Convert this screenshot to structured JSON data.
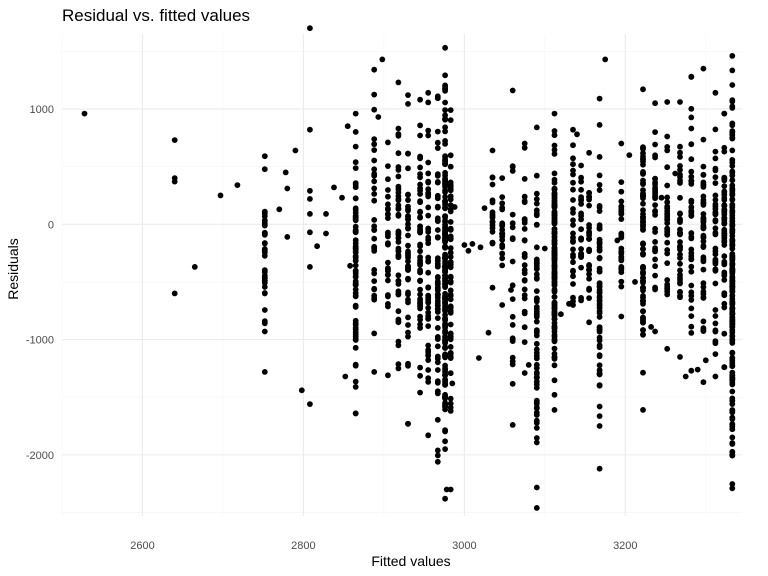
{
  "chart_data": {
    "type": "scatter",
    "title": "Residual vs. fitted values",
    "xlabel": "Fitted values",
    "ylabel": "Residuals",
    "xlim": [
      2500,
      3345
    ],
    "ylim": [
      -2530,
      1650
    ],
    "x_ticks": [
      2600,
      2800,
      3000,
      3200
    ],
    "x_tick_labels": [
      "2600",
      "2800",
      "3000",
      "3200"
    ],
    "y_ticks": [
      1000,
      0,
      -1000,
      -2000
    ],
    "y_tick_labels": [
      "1000",
      "0",
      "-1000",
      "-2000"
    ],
    "grid": true,
    "background": "#ffffff",
    "grid_major_color": "#ebebeb",
    "grid_minor_color": "#f5f5f5",
    "point_color": "#000000",
    "columns": [
      {
        "x": 2752,
        "min": -1280,
        "max": 590,
        "n": 34
      },
      {
        "x": 2865,
        "min": -1640,
        "max": 960,
        "n": 70
      },
      {
        "x": 2888,
        "min": -1280,
        "max": 1340,
        "n": 32
      },
      {
        "x": 2905,
        "min": -1310,
        "max": 710,
        "n": 28
      },
      {
        "x": 2918,
        "min": -1250,
        "max": 1230,
        "n": 46
      },
      {
        "x": 2930,
        "min": -1730,
        "max": 1120,
        "n": 44
      },
      {
        "x": 2945,
        "min": -1460,
        "max": 1080,
        "n": 54
      },
      {
        "x": 2955,
        "min": -1830,
        "max": 1140,
        "n": 46
      },
      {
        "x": 2967,
        "min": -2060,
        "max": 1110,
        "n": 60
      },
      {
        "x": 2976,
        "min": -2380,
        "max": 1530,
        "n": 190
      },
      {
        "x": 2983,
        "min": -2300,
        "max": 990,
        "n": 60
      },
      {
        "x": 3035,
        "min": -550,
        "max": 640,
        "n": 18
      },
      {
        "x": 3047,
        "min": -700,
        "max": 400,
        "n": 22
      },
      {
        "x": 3060,
        "min": -1740,
        "max": 1160,
        "n": 20
      },
      {
        "x": 3075,
        "min": -1290,
        "max": 700,
        "n": 28
      },
      {
        "x": 3090,
        "min": -2460,
        "max": 840,
        "n": 64
      },
      {
        "x": 3112,
        "min": -1610,
        "max": 960,
        "n": 140
      },
      {
        "x": 3135,
        "min": -700,
        "max": 820,
        "n": 26
      },
      {
        "x": 3145,
        "min": -660,
        "max": 510,
        "n": 22
      },
      {
        "x": 3155,
        "min": -850,
        "max": 620,
        "n": 28
      },
      {
        "x": 3168,
        "min": -2120,
        "max": 1090,
        "n": 64
      },
      {
        "x": 3195,
        "min": -800,
        "max": 700,
        "n": 26
      },
      {
        "x": 3222,
        "min": -1610,
        "max": 1170,
        "n": 80
      },
      {
        "x": 3237,
        "min": -930,
        "max": 1050,
        "n": 30
      },
      {
        "x": 3252,
        "min": -1080,
        "max": 1060,
        "n": 34
      },
      {
        "x": 3268,
        "min": -1150,
        "max": 1060,
        "n": 38
      },
      {
        "x": 3282,
        "min": -1270,
        "max": 1280,
        "n": 40
      },
      {
        "x": 3297,
        "min": -1370,
        "max": 1350,
        "n": 44
      },
      {
        "x": 3312,
        "min": -1320,
        "max": 1140,
        "n": 40
      },
      {
        "x": 3323,
        "min": -1240,
        "max": 960,
        "n": 54
      },
      {
        "x": 3333,
        "min": -2290,
        "max": 1460,
        "n": 190
      }
    ],
    "points": [
      {
        "x": 2528,
        "y": 960
      },
      {
        "x": 2640,
        "y": 730
      },
      {
        "x": 2640,
        "y": 400
      },
      {
        "x": 2640,
        "y": 370
      },
      {
        "x": 2640,
        "y": -600
      },
      {
        "x": 2665,
        "y": -370
      },
      {
        "x": 2697,
        "y": 250
      },
      {
        "x": 2718,
        "y": 340
      },
      {
        "x": 2770,
        "y": 130
      },
      {
        "x": 2778,
        "y": 450
      },
      {
        "x": 2780,
        "y": 310
      },
      {
        "x": 2780,
        "y": -110
      },
      {
        "x": 2790,
        "y": 640
      },
      {
        "x": 2798,
        "y": -1440
      },
      {
        "x": 2808,
        "y": 1700
      },
      {
        "x": 2808,
        "y": 820
      },
      {
        "x": 2808,
        "y": 290
      },
      {
        "x": 2808,
        "y": 220
      },
      {
        "x": 2808,
        "y": 90
      },
      {
        "x": 2808,
        "y": -70
      },
      {
        "x": 2808,
        "y": -370
      },
      {
        "x": 2808,
        "y": -1560
      },
      {
        "x": 2817,
        "y": -190
      },
      {
        "x": 2828,
        "y": 90
      },
      {
        "x": 2828,
        "y": -80
      },
      {
        "x": 2838,
        "y": 320
      },
      {
        "x": 2848,
        "y": 230
      },
      {
        "x": 2852,
        "y": -1320
      },
      {
        "x": 2855,
        "y": 850
      },
      {
        "x": 2858,
        "y": -360
      },
      {
        "x": 2893,
        "y": 930
      },
      {
        "x": 2898,
        "y": 1430
      },
      {
        "x": 2978,
        "y": -2300
      },
      {
        "x": 2985,
        "y": -1380
      },
      {
        "x": 2988,
        "y": 150
      },
      {
        "x": 3000,
        "y": -180
      },
      {
        "x": 3005,
        "y": -230
      },
      {
        "x": 3010,
        "y": -170
      },
      {
        "x": 3018,
        "y": -1160
      },
      {
        "x": 3020,
        "y": -200
      },
      {
        "x": 3025,
        "y": 140
      },
      {
        "x": 3030,
        "y": -940
      },
      {
        "x": 3058,
        "y": -570
      },
      {
        "x": 3080,
        "y": -1220
      },
      {
        "x": 3100,
        "y": -210
      },
      {
        "x": 3120,
        "y": -780
      },
      {
        "x": 3130,
        "y": -690
      },
      {
        "x": 3140,
        "y": 780
      },
      {
        "x": 3175,
        "y": 1430
      },
      {
        "x": 3190,
        "y": -140
      },
      {
        "x": 3205,
        "y": 600
      },
      {
        "x": 3212,
        "y": -500
      },
      {
        "x": 3232,
        "y": -890
      },
      {
        "x": 3245,
        "y": 230
      },
      {
        "x": 3262,
        "y": 440
      },
      {
        "x": 3275,
        "y": -1320
      },
      {
        "x": 3290,
        "y": -1260
      },
      {
        "x": 3300,
        "y": -1180
      },
      {
        "x": 3333,
        "y": -1690
      }
    ]
  }
}
